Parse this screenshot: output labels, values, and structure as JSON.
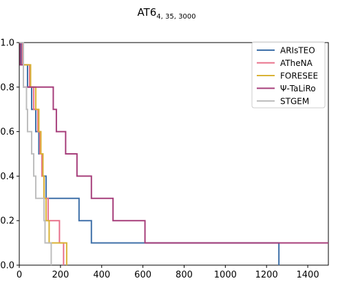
{
  "chart_data": {
    "type": "line",
    "title": {
      "main": "AT6",
      "subscript": "4, 35, 3000"
    },
    "xlabel": "",
    "ylabel": "",
    "xlim": [
      0,
      1500
    ],
    "ylim": [
      0,
      1.0
    ],
    "xticks": [
      "0",
      "200",
      "400",
      "600",
      "800",
      "1000",
      "1200",
      "1400"
    ],
    "yticks": [
      "0.0",
      "0.2",
      "0.4",
      "0.6",
      "0.8",
      "1.0"
    ],
    "grid": false,
    "legend_position": "top-right",
    "series": [
      {
        "name": "ARIsTEO",
        "color": "#3d6fa8",
        "points": [
          [
            0,
            1.0
          ],
          [
            10,
            1.0
          ],
          [
            10,
            0.9
          ],
          [
            40,
            0.9
          ],
          [
            40,
            0.8
          ],
          [
            60,
            0.8
          ],
          [
            60,
            0.7
          ],
          [
            80,
            0.7
          ],
          [
            80,
            0.6
          ],
          [
            95,
            0.6
          ],
          [
            95,
            0.5
          ],
          [
            110,
            0.5
          ],
          [
            110,
            0.4
          ],
          [
            130,
            0.4
          ],
          [
            130,
            0.3
          ],
          [
            290,
            0.3
          ],
          [
            290,
            0.2
          ],
          [
            350,
            0.2
          ],
          [
            350,
            0.1
          ],
          [
            1260,
            0.1
          ],
          [
            1260,
            0.0
          ]
        ]
      },
      {
        "name": "ATheNA",
        "color": "#e8708a",
        "points": [
          [
            0,
            1.0
          ],
          [
            15,
            1.0
          ],
          [
            15,
            0.9
          ],
          [
            50,
            0.9
          ],
          [
            50,
            0.8
          ],
          [
            70,
            0.8
          ],
          [
            70,
            0.7
          ],
          [
            90,
            0.7
          ],
          [
            90,
            0.6
          ],
          [
            100,
            0.6
          ],
          [
            100,
            0.5
          ],
          [
            110,
            0.5
          ],
          [
            110,
            0.4
          ],
          [
            120,
            0.4
          ],
          [
            120,
            0.3
          ],
          [
            140,
            0.3
          ],
          [
            140,
            0.2
          ],
          [
            195,
            0.2
          ],
          [
            195,
            0.1
          ],
          [
            215,
            0.1
          ],
          [
            215,
            0.0
          ]
        ]
      },
      {
        "name": "FORESEE",
        "color": "#d9b234",
        "points": [
          [
            0,
            1.0
          ],
          [
            20,
            1.0
          ],
          [
            20,
            0.9
          ],
          [
            55,
            0.9
          ],
          [
            55,
            0.8
          ],
          [
            80,
            0.8
          ],
          [
            80,
            0.7
          ],
          [
            95,
            0.7
          ],
          [
            95,
            0.6
          ],
          [
            105,
            0.6
          ],
          [
            105,
            0.5
          ],
          [
            115,
            0.5
          ],
          [
            115,
            0.4
          ],
          [
            120,
            0.4
          ],
          [
            120,
            0.3
          ],
          [
            130,
            0.3
          ],
          [
            130,
            0.2
          ],
          [
            145,
            0.2
          ],
          [
            145,
            0.1
          ],
          [
            230,
            0.1
          ],
          [
            230,
            0.0
          ]
        ]
      },
      {
        "name": "Ψ-TaLiRo",
        "color": "#a63d7a",
        "points": [
          [
            0,
            1.0
          ],
          [
            5,
            1.0
          ],
          [
            5,
            0.9
          ],
          [
            20,
            0.9
          ],
          [
            20,
            0.8
          ],
          [
            165,
            0.8
          ],
          [
            165,
            0.7
          ],
          [
            180,
            0.7
          ],
          [
            180,
            0.6
          ],
          [
            225,
            0.6
          ],
          [
            225,
            0.5
          ],
          [
            280,
            0.5
          ],
          [
            280,
            0.4
          ],
          [
            350,
            0.4
          ],
          [
            350,
            0.3
          ],
          [
            455,
            0.3
          ],
          [
            455,
            0.2
          ],
          [
            610,
            0.2
          ],
          [
            610,
            0.1
          ],
          [
            1500,
            0.1
          ]
        ]
      },
      {
        "name": "STGEM",
        "color": "#bdbdbd",
        "points": [
          [
            0,
            1.0
          ],
          [
            20,
            1.0
          ],
          [
            20,
            0.8
          ],
          [
            35,
            0.8
          ],
          [
            35,
            0.7
          ],
          [
            40,
            0.7
          ],
          [
            40,
            0.6
          ],
          [
            60,
            0.6
          ],
          [
            60,
            0.5
          ],
          [
            70,
            0.5
          ],
          [
            70,
            0.4
          ],
          [
            80,
            0.4
          ],
          [
            80,
            0.3
          ],
          [
            120,
            0.3
          ],
          [
            120,
            0.2
          ],
          [
            125,
            0.2
          ],
          [
            125,
            0.1
          ],
          [
            155,
            0.1
          ],
          [
            155,
            0.0
          ]
        ]
      }
    ]
  }
}
